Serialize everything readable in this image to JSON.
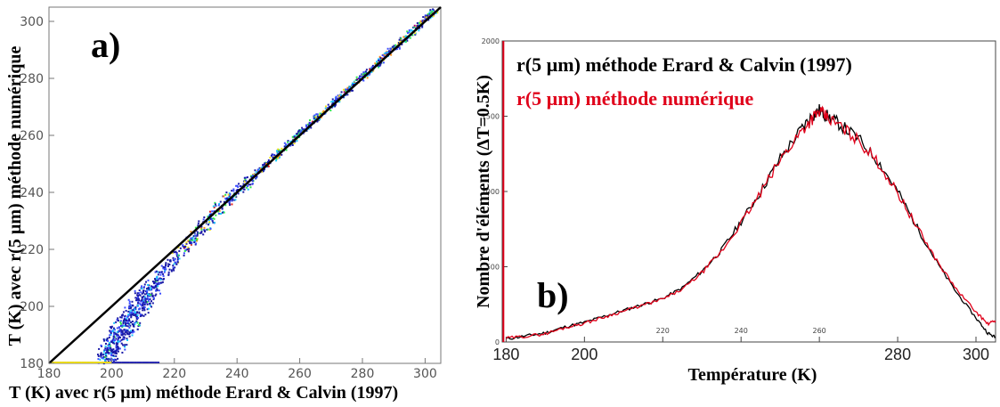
{
  "chart_data": [
    {
      "type": "scatter",
      "panel_label": "a)",
      "xlabel": "T (K) avec r(5 µm) méthode Erard & Calvin (1997)",
      "ylabel": "T (K) avec r(5 µm) méthode numérique",
      "xlim": [
        180,
        305
      ],
      "ylim": [
        180,
        305
      ],
      "xticks": [
        180,
        200,
        220,
        240,
        260,
        280,
        300
      ],
      "yticks": [
        180,
        200,
        220,
        240,
        260,
        280,
        300
      ],
      "grid": false,
      "reference_line": {
        "x": [
          180,
          305
        ],
        "y": [
          180,
          305
        ],
        "color": "#000000"
      },
      "density_colors": [
        "#1a1aa6",
        "#3b4cff",
        "#19c8ff",
        "#2ee84a",
        "#f2e21a",
        "#ff8a10",
        "#e01a1a",
        "#b00078"
      ],
      "series": [
        {
          "values": [
            [
              198,
              182
            ],
            [
              200,
              186
            ],
            [
              202,
              190
            ],
            [
              205,
              195
            ],
            [
              207,
              198
            ],
            [
              210,
              203
            ],
            [
              213,
              207
            ],
            [
              216,
              212
            ],
            [
              220,
              217
            ],
            [
              224,
              222
            ],
            [
              228,
              227
            ],
            [
              232,
              232
            ],
            [
              236,
              237
            ],
            [
              240,
              241
            ],
            [
              244,
              245
            ],
            [
              248,
              249
            ],
            [
              252,
              253
            ],
            [
              256,
              257
            ],
            [
              260,
              261
            ],
            [
              264,
              265
            ],
            [
              268,
              269
            ],
            [
              272,
              273
            ],
            [
              276,
              277
            ],
            [
              280,
              281
            ],
            [
              284,
              285
            ],
            [
              288,
              289
            ],
            [
              292,
              293
            ],
            [
              296,
              297
            ],
            [
              300,
              301
            ],
            [
              303,
              304
            ]
          ]
        }
      ],
      "baseline_points": {
        "y": 180,
        "x_range": [
          180,
          215
        ]
      }
    },
    {
      "type": "line",
      "panel_label": "b)",
      "xlabel": "Température (K)",
      "ylabel": "Nombre d'éléments (ΔT=0.5K)",
      "xlim": [
        179,
        305
      ],
      "ylim": [
        0,
        2000
      ],
      "xticks": [
        180,
        200,
        220,
        240,
        260,
        280,
        300
      ],
      "yticks": [
        0,
        500,
        1000,
        1500,
        2000
      ],
      "x": [
        180,
        185,
        190,
        195,
        200,
        205,
        210,
        215,
        220,
        225,
        230,
        235,
        240,
        245,
        250,
        255,
        258,
        260,
        262,
        265,
        270,
        275,
        280,
        285,
        290,
        295,
        300,
        303,
        305
      ],
      "series": [
        {
          "name": "r(5 µm) méthode Erard & Calvin (1997)",
          "color": "#000000",
          "values": [
            20,
            40,
            60,
            100,
            130,
            170,
            210,
            250,
            290,
            360,
            470,
            610,
            800,
            1000,
            1220,
            1400,
            1500,
            1540,
            1500,
            1450,
            1350,
            1200,
            1000,
            760,
            530,
            330,
            160,
            60,
            30
          ]
        },
        {
          "name": "r(5 µm) méthode numérique",
          "color": "#e0001a",
          "values": [
            25,
            38,
            55,
            95,
            125,
            165,
            205,
            245,
            285,
            350,
            460,
            600,
            790,
            990,
            1210,
            1390,
            1480,
            1530,
            1490,
            1440,
            1340,
            1190,
            990,
            760,
            540,
            350,
            200,
            120,
            140
          ]
        }
      ],
      "red_spike": {
        "x": 179.3,
        "value": 2000
      }
    }
  ]
}
